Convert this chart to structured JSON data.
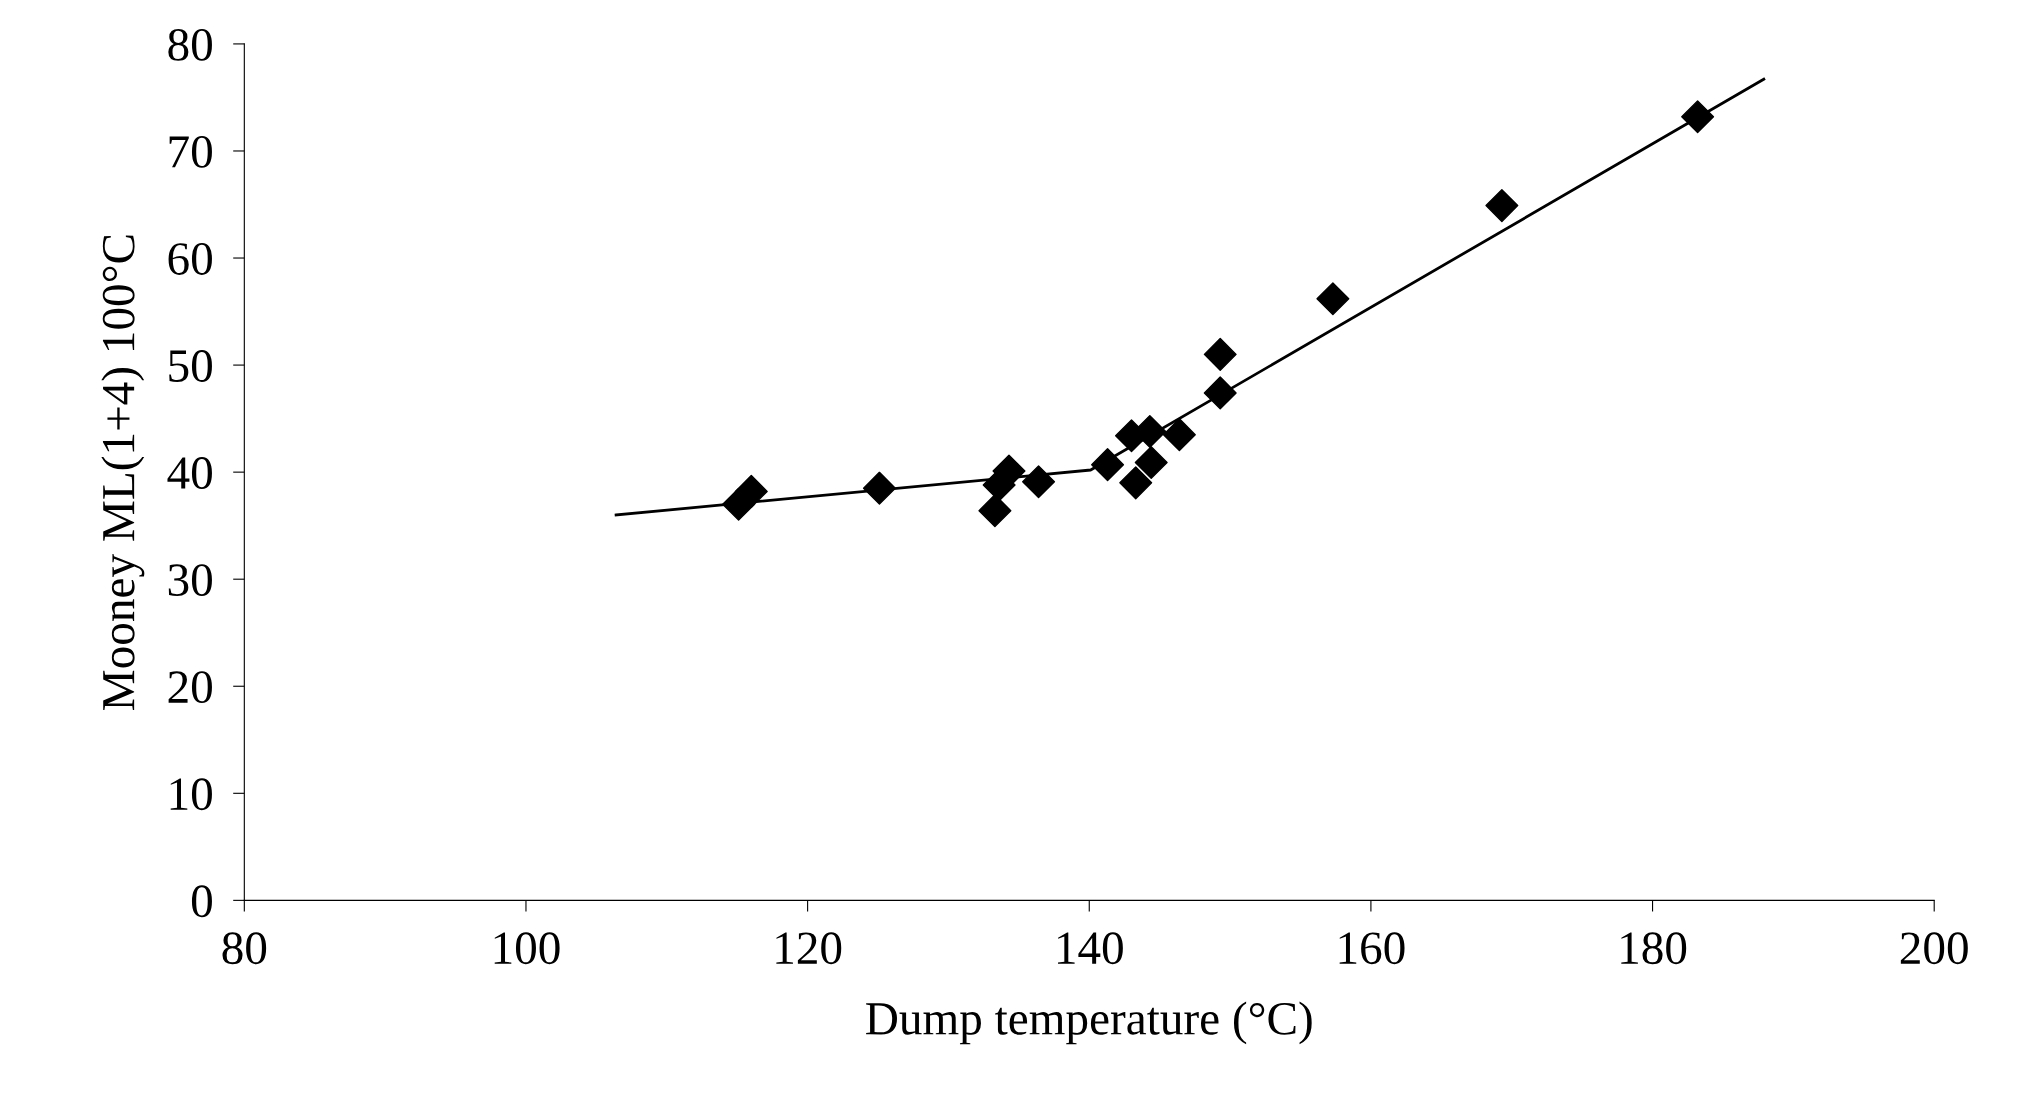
{
  "chart_data": {
    "type": "scatter",
    "xlabel": "Dump temperature (°C)",
    "ylabel": "Mooney ML(1+4) 100°C",
    "xlim": [
      80,
      200
    ],
    "xticks": [
      80,
      100,
      120,
      140,
      160,
      180,
      200
    ],
    "ylim": [
      0,
      80
    ],
    "yticks": [
      0,
      10,
      20,
      30,
      40,
      50,
      60,
      70,
      80
    ],
    "grid": false,
    "legend": false,
    "series": [
      {
        "color": "#000000",
        "marker": "diamond",
        "x": [
          115.1,
          116.0,
          125.1,
          133.3,
          133.6,
          134.3,
          136.4,
          141.3,
          143.0,
          143.3,
          144.3,
          144.4,
          146.4,
          149.3,
          149.3,
          157.3,
          169.3,
          183.2
        ],
        "values": [
          37.0,
          38.2,
          38.5,
          36.4,
          38.8,
          40.1,
          39.1,
          40.7,
          43.4,
          39.0,
          43.8,
          40.9,
          43.5,
          51.0,
          47.4,
          56.2,
          64.9,
          73.2
        ]
      },
      {
        "type": "line",
        "color": "#000000",
        "marker": "none",
        "line_style": "solid",
        "x": [
          106.4,
          140.1,
          187.9
        ],
        "values": [
          36.0,
          40.2,
          76.7
        ]
      }
    ]
  }
}
